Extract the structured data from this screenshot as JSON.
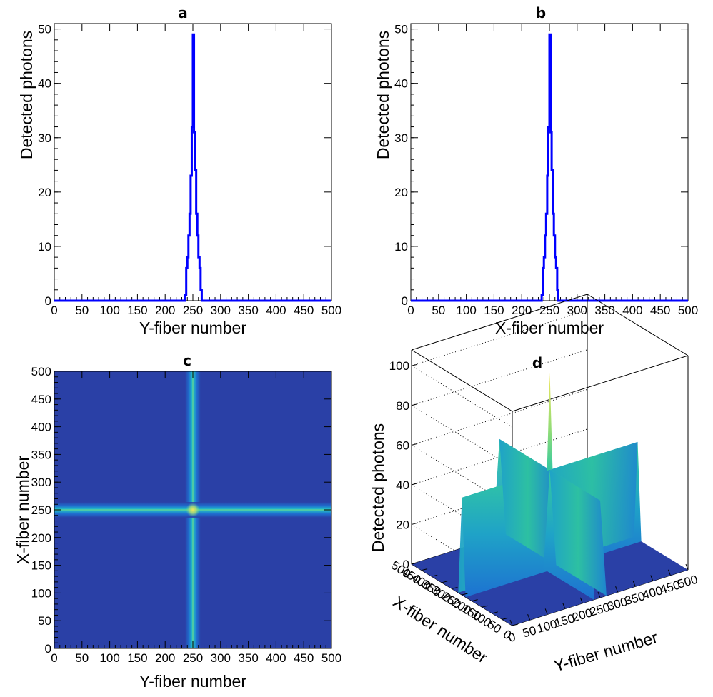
{
  "chart_data": [
    {
      "panel": "a",
      "type": "line",
      "title": "a",
      "xlabel": "Y-fiber number",
      "ylabel": "Detected photons",
      "xlim": [
        0,
        500
      ],
      "ylim": [
        0,
        51
      ],
      "xticks": [
        0,
        50,
        100,
        150,
        200,
        250,
        300,
        350,
        400,
        450,
        500
      ],
      "yticks": [
        0,
        10,
        20,
        30,
        40,
        50
      ],
      "series": [
        {
          "color": "#0000ff",
          "x": [
            0,
            234,
            236,
            238,
            240,
            242,
            244,
            246,
            248,
            250,
            252,
            254,
            256,
            258,
            260,
            262,
            264,
            266,
            268,
            500
          ],
          "values": [
            0,
            0,
            1,
            6,
            8,
            12,
            16,
            23,
            32,
            49,
            31,
            24,
            16,
            12,
            8,
            6,
            2,
            0,
            0,
            0
          ]
        }
      ]
    },
    {
      "panel": "b",
      "type": "line",
      "title": "b",
      "xlabel": "X-fiber number",
      "ylabel": "Detected photons",
      "xlim": [
        0,
        500
      ],
      "ylim": [
        0,
        51
      ],
      "xticks": [
        0,
        50,
        100,
        150,
        200,
        250,
        300,
        350,
        400,
        450,
        500
      ],
      "yticks": [
        0,
        10,
        20,
        30,
        40,
        50
      ],
      "series": [
        {
          "color": "#0000ff",
          "x": [
            0,
            234,
            236,
            238,
            240,
            242,
            244,
            246,
            248,
            250,
            252,
            254,
            256,
            258,
            260,
            262,
            264,
            266,
            268,
            500
          ],
          "values": [
            0,
            0,
            1,
            6,
            8,
            12,
            16,
            23,
            32,
            49,
            31,
            24,
            16,
            12,
            8,
            6,
            2,
            0,
            0,
            0
          ]
        }
      ]
    },
    {
      "panel": "c",
      "type": "heatmap",
      "title": "c",
      "xlabel": "Y-fiber number",
      "ylabel": "X-fiber number",
      "xlim": [
        0,
        500
      ],
      "ylim": [
        0,
        500
      ],
      "xticks": [
        0,
        50,
        100,
        150,
        200,
        250,
        300,
        350,
        400,
        450,
        500
      ],
      "yticks": [
        0,
        50,
        100,
        150,
        200,
        250,
        300,
        350,
        400,
        450,
        500
      ],
      "profile_x": [
        236,
        240,
        244,
        248,
        250,
        252,
        256,
        260,
        264
      ],
      "profile_intensity": [
        0.05,
        0.15,
        0.33,
        0.65,
        1.0,
        0.63,
        0.33,
        0.15,
        0.04
      ],
      "center": [
        250,
        250
      ],
      "colors": {
        "background": "#2a40a6",
        "peak": "#f2e65a"
      }
    },
    {
      "panel": "d",
      "type": "surface",
      "title": "d",
      "xlabel": "Y-fiber number",
      "ylabel": "X-fiber number",
      "zlabel": "Detected photons",
      "xlim": [
        0,
        500
      ],
      "ylim": [
        0,
        500
      ],
      "zlim": [
        0,
        108
      ],
      "xticks": [
        0,
        50,
        100,
        150,
        200,
        250,
        300,
        350,
        400,
        450,
        500
      ],
      "yticks": [
        0,
        50,
        100,
        150,
        200,
        250,
        300,
        350,
        400,
        450,
        500
      ],
      "zticks": [
        0,
        20,
        40,
        60,
        80,
        100
      ],
      "ridge_height": 49,
      "peak_height": 98,
      "colors": {
        "floor": "#2a40a6",
        "ridge_low": "#1a6fcf",
        "ridge_high": "#2fc3a0",
        "peak": "#f2e65a"
      }
    }
  ]
}
